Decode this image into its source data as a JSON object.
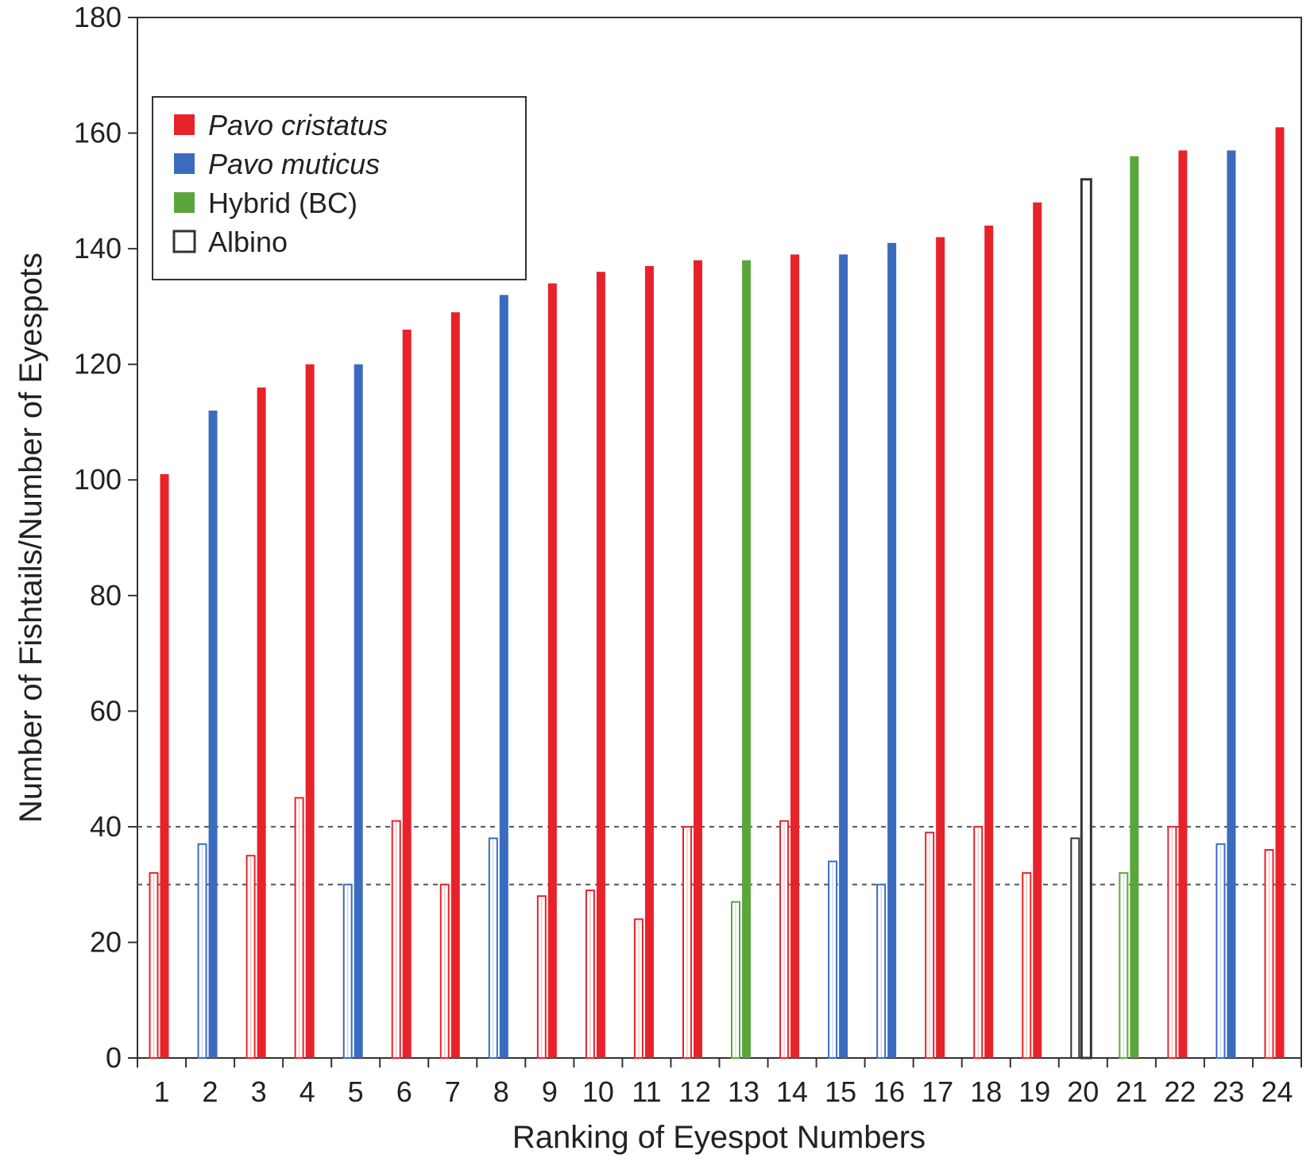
{
  "chart_data": {
    "type": "bar",
    "xlabel": "Ranking of Eyespot Numbers",
    "ylabel": "Number of Fishtails/Number of Eyespots",
    "ylim": [
      0,
      180
    ],
    "yticks": [
      "0",
      "20",
      "40",
      "60",
      "80",
      "100",
      "120",
      "140",
      "160",
      "180"
    ],
    "reference_lines": [
      30,
      40
    ],
    "grid": false,
    "legend_position": "top-left",
    "categories": [
      "1",
      "2",
      "3",
      "4",
      "5",
      "6",
      "7",
      "8",
      "9",
      "10",
      "11",
      "12",
      "13",
      "14",
      "15",
      "16",
      "17",
      "18",
      "19",
      "20",
      "21",
      "22",
      "23",
      "24"
    ],
    "bar_groups": [
      {
        "name": "Pavo cristatus",
        "italic": true,
        "color": "#e8222a",
        "fill": "solid"
      },
      {
        "name": "Pavo muticus",
        "italic": true,
        "color": "#3a6bbf",
        "fill": "solid"
      },
      {
        "name": "Hybrid (BC)",
        "italic": false,
        "color": "#5aa63c",
        "fill": "solid"
      },
      {
        "name": "Albino",
        "italic": false,
        "color": "#333333",
        "fill": "open"
      }
    ],
    "series": [
      {
        "name": "Fishtails",
        "style": "open",
        "values": [
          32,
          37,
          35,
          45,
          30,
          41,
          30,
          38,
          28,
          29,
          24,
          40,
          27,
          41,
          34,
          30,
          39,
          40,
          32,
          38,
          32,
          40,
          37,
          36
        ]
      },
      {
        "name": "Eyespots",
        "style": "solid",
        "values": [
          101,
          112,
          116,
          120,
          120,
          126,
          129,
          132,
          134,
          136,
          137,
          138,
          138,
          139,
          139,
          141,
          142,
          144,
          148,
          152,
          156,
          157,
          157,
          161
        ]
      }
    ],
    "groups": [
      "Pavo cristatus",
      "Pavo muticus",
      "Pavo cristatus",
      "Pavo cristatus",
      "Pavo muticus",
      "Pavo cristatus",
      "Pavo cristatus",
      "Pavo muticus",
      "Pavo cristatus",
      "Pavo cristatus",
      "Pavo cristatus",
      "Pavo cristatus",
      "Hybrid (BC)",
      "Pavo cristatus",
      "Pavo muticus",
      "Pavo muticus",
      "Pavo cristatus",
      "Pavo cristatus",
      "Pavo cristatus",
      "Albino",
      "Hybrid (BC)",
      "Pavo cristatus",
      "Pavo muticus",
      "Pavo cristatus"
    ]
  }
}
